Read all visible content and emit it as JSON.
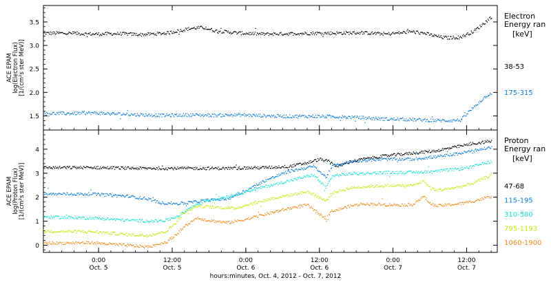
{
  "figure": {
    "xaxis_caption": "hours:minutes, Oct.  4, 2012 - Oct.  7, 2012",
    "x_ticks": [
      {
        "time": "0:00",
        "date": "Oct. 5",
        "hour": 9
      },
      {
        "time": "12:00",
        "date": "Oct. 5",
        "hour": 21
      },
      {
        "time": "0:00",
        "date": "Oct. 6",
        "hour": 33
      },
      {
        "time": "12:00",
        "date": "Oct. 6",
        "hour": 45
      },
      {
        "time": "0:00",
        "date": "Oct. 7",
        "hour": 57
      },
      {
        "time": "12:00",
        "date": "Oct. 7",
        "hour": 69
      }
    ]
  },
  "chart_data": [
    {
      "type": "scatter",
      "ylabel_lines": [
        "ACE EPAM",
        "log(Electron Flux)",
        "[1/(cm²s ster MeV)]"
      ],
      "legend_title_lines": [
        "Electron",
        "Energy ran"
      ],
      "legend_unit": "[keV]",
      "ylim": [
        1.2,
        3.85
      ],
      "yticks": [
        "1.5",
        "2.0",
        "2.5",
        "3.0",
        "3.5"
      ],
      "x_range_hours": [
        0,
        74
      ],
      "series": [
        {
          "name": "38-53",
          "color": "#000000",
          "x": [
            0,
            4,
            8,
            12,
            16,
            20,
            22,
            24,
            26,
            28,
            32,
            36,
            40,
            44,
            48,
            52,
            56,
            60,
            62,
            63.5,
            65,
            66,
            68,
            70,
            71.5,
            73
          ],
          "y": [
            3.27,
            3.27,
            3.25,
            3.26,
            3.24,
            3.27,
            3.32,
            3.37,
            3.39,
            3.32,
            3.27,
            3.25,
            3.26,
            3.27,
            3.27,
            3.28,
            3.25,
            3.3,
            3.27,
            3.22,
            3.18,
            3.17,
            3.19,
            3.3,
            3.45,
            3.62
          ]
        },
        {
          "name": "175-315",
          "color": "#0b7bd8",
          "x": [
            0,
            4,
            8,
            12,
            16,
            20,
            24,
            28,
            32,
            36,
            40,
            44,
            48,
            52,
            56,
            60,
            64,
            66,
            68,
            69,
            70,
            71,
            72,
            73
          ],
          "y": [
            1.56,
            1.56,
            1.57,
            1.55,
            1.53,
            1.52,
            1.53,
            1.52,
            1.53,
            1.51,
            1.5,
            1.5,
            1.49,
            1.47,
            1.44,
            1.43,
            1.41,
            1.41,
            1.42,
            1.55,
            1.68,
            1.8,
            1.92,
            2.0
          ]
        }
      ]
    },
    {
      "type": "scatter",
      "ylabel_lines": [
        "ACE EPAM",
        "log(Proton Flux)",
        "[1/(cm²s ster MeV)]"
      ],
      "legend_title_lines": [
        "Proton",
        "Energy ran"
      ],
      "legend_unit": "[keV]",
      "ylim": [
        -0.3,
        4.8
      ],
      "yticks": [
        "0",
        "1",
        "2",
        "3",
        "4"
      ],
      "x_range_hours": [
        0,
        74
      ],
      "series": [
        {
          "name": "47-68",
          "color": "#000000",
          "x": [
            0,
            8,
            16,
            24,
            30,
            36,
            40,
            43,
            45,
            46.5,
            48,
            50,
            52,
            56,
            60,
            64,
            68,
            70,
            73
          ],
          "y": [
            3.25,
            3.25,
            3.22,
            3.22,
            3.22,
            3.25,
            3.3,
            3.45,
            3.6,
            3.5,
            3.3,
            3.5,
            3.6,
            3.75,
            3.85,
            3.95,
            4.15,
            4.25,
            4.35
          ]
        },
        {
          "name": "115-195",
          "color": "#0b7bd8",
          "x": [
            0,
            8,
            14,
            17,
            19,
            22,
            24,
            27,
            30,
            33,
            36,
            40,
            44,
            46,
            47,
            50,
            52,
            56,
            60,
            64,
            68,
            70,
            73
          ],
          "y": [
            2.15,
            2.15,
            2.05,
            1.95,
            1.78,
            1.75,
            1.8,
            1.9,
            1.95,
            2.3,
            2.7,
            3.1,
            3.3,
            2.85,
            3.3,
            3.5,
            3.55,
            3.6,
            3.6,
            3.7,
            3.85,
            3.95,
            4.1
          ]
        },
        {
          "name": "310-580",
          "color": "#19e0d0",
          "x": [
            0,
            8,
            14,
            18,
            20,
            22,
            24,
            26,
            30,
            33,
            36,
            40,
            44,
            46,
            47,
            50,
            52,
            56,
            60,
            64,
            68,
            70,
            73
          ],
          "y": [
            1.2,
            1.15,
            1.05,
            1.02,
            1.05,
            1.25,
            1.6,
            1.85,
            2.05,
            2.25,
            2.45,
            2.7,
            2.95,
            2.4,
            2.9,
            3.0,
            3.0,
            3.05,
            3.05,
            3.1,
            3.2,
            3.3,
            3.5
          ]
        },
        {
          "name": "795-1193",
          "color": "#c8e610",
          "x": [
            0,
            8,
            14,
            17,
            20,
            21.5,
            23,
            25,
            28,
            31,
            34,
            37,
            40,
            43,
            45,
            46,
            47,
            50,
            52,
            56,
            60,
            62,
            63,
            64,
            68,
            70,
            73
          ],
          "y": [
            0.6,
            0.58,
            0.45,
            0.42,
            0.6,
            0.95,
            1.4,
            1.65,
            1.6,
            1.55,
            1.75,
            1.95,
            2.1,
            2.25,
            2.0,
            1.85,
            2.2,
            2.4,
            2.45,
            2.5,
            2.5,
            2.7,
            2.4,
            2.3,
            2.45,
            2.6,
            2.95
          ]
        },
        {
          "name": "1060-1900",
          "color": "#f08a18",
          "x": [
            0,
            8,
            14,
            17,
            20,
            21.5,
            23,
            25,
            27,
            30,
            33,
            36,
            40,
            43,
            45,
            46,
            47,
            48,
            50,
            52,
            56,
            60,
            62,
            63,
            64,
            68,
            70,
            73
          ],
          "y": [
            0.1,
            0.12,
            0.0,
            -0.05,
            0.15,
            0.45,
            0.8,
            1.15,
            1.05,
            0.95,
            1.1,
            1.3,
            1.55,
            1.7,
            1.3,
            1.15,
            1.45,
            1.5,
            1.65,
            1.75,
            1.7,
            1.7,
            2.05,
            1.75,
            1.65,
            1.75,
            1.85,
            2.05
          ]
        }
      ]
    }
  ]
}
